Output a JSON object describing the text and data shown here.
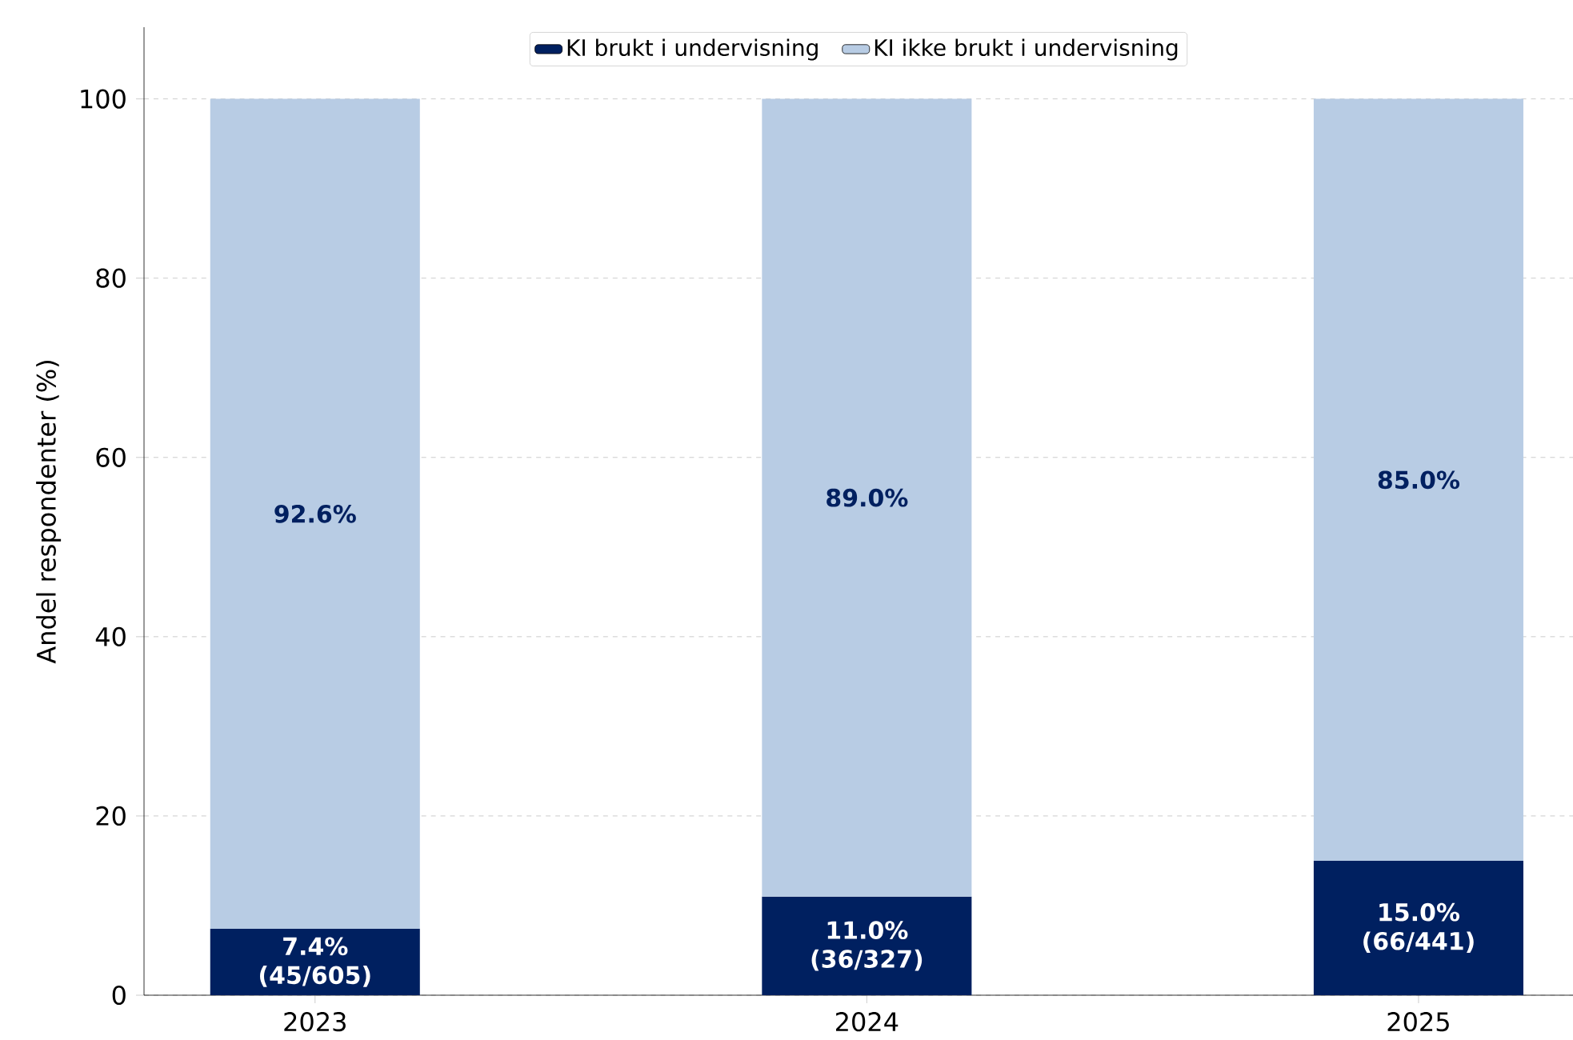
{
  "chart_data": {
    "type": "bar",
    "stacked": true,
    "ylabel": "Andel respondenter (%)",
    "categories": [
      "2023",
      "2024",
      "2025"
    ],
    "series": [
      {
        "name": "KI brukt i undervisning",
        "color": "#002060",
        "values": [
          7.4,
          11.0,
          15.0
        ],
        "value_labels": [
          "7.4% (45/605)",
          "11.0% (36/327)",
          "15.0% (66/441)"
        ]
      },
      {
        "name": "KI ikke brukt i undervisning",
        "color": "#b8cce4",
        "values": [
          92.6,
          89.0,
          85.0
        ],
        "value_labels": [
          "92.6%",
          "89.0%",
          "85.0%"
        ]
      }
    ],
    "ylim": [
      0,
      108
    ],
    "yticks": [
      0,
      20,
      40,
      60,
      80,
      100
    ],
    "grid": "y",
    "legend": "top"
  }
}
